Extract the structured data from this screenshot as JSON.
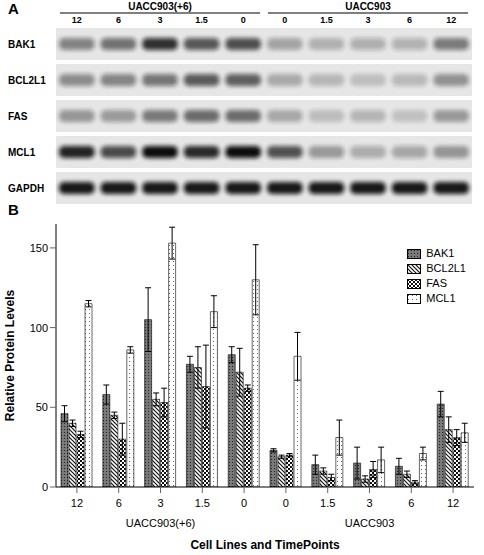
{
  "blot": {
    "label": "A",
    "groups": [
      {
        "label": "UACC903(+6)",
        "lanes": [
          "12",
          "6",
          "3",
          "1.5",
          "0"
        ]
      },
      {
        "label": "UACC903",
        "lanes": [
          "0",
          "1.5",
          "3",
          "6",
          "12"
        ]
      }
    ],
    "rows": [
      "BAK1",
      "BCL2L1",
      "FAS",
      "MCL1",
      "GAPDH"
    ]
  },
  "chart_data": {
    "type": "bar",
    "annotations": [
      "B"
    ],
    "x_label": "Cell Lines and TimePoints",
    "y_label": "Relative Protein Levels",
    "categories": [
      "12",
      "6",
      "3",
      "1.5",
      "0",
      "0",
      "1.5",
      "3",
      "6",
      "12"
    ],
    "category_groups": [
      {
        "label": "UACC903(+6)",
        "count": 5
      },
      {
        "label": "UACC903",
        "count": 5
      }
    ],
    "series": [
      {
        "name": "BAK1",
        "color": "#7a7a7a",
        "values": [
          46,
          58,
          105,
          77,
          83,
          23,
          14,
          15,
          13,
          52
        ],
        "errors": [
          5,
          6,
          20,
          5,
          5,
          1,
          6,
          10,
          5,
          8
        ]
      },
      {
        "name": "BCL2L1",
        "color": "#ffffff",
        "values": [
          40,
          45,
          55,
          75,
          72,
          19,
          10,
          5,
          8,
          36
        ],
        "errors": [
          2,
          2,
          4,
          13,
          15,
          1,
          2,
          2,
          2,
          8
        ]
      },
      {
        "name": "FAS",
        "color": "#ffffff",
        "values": [
          33,
          30,
          53,
          63,
          62,
          20,
          6,
          11,
          3,
          31
        ],
        "errors": [
          2,
          10,
          9,
          26,
          2,
          1,
          2,
          5,
          1,
          5
        ]
      },
      {
        "name": "MCL1",
        "color": "#ffffff",
        "values": [
          115,
          86,
          153,
          110,
          130,
          82,
          31,
          17,
          21,
          34
        ],
        "errors": [
          2,
          2,
          10,
          10,
          22,
          15,
          11,
          8,
          4,
          6
        ]
      }
    ],
    "ylim": [
      0,
      165
    ],
    "yticks": [
      0,
      50,
      100,
      150
    ],
    "grid": false,
    "legend": "upper right"
  }
}
